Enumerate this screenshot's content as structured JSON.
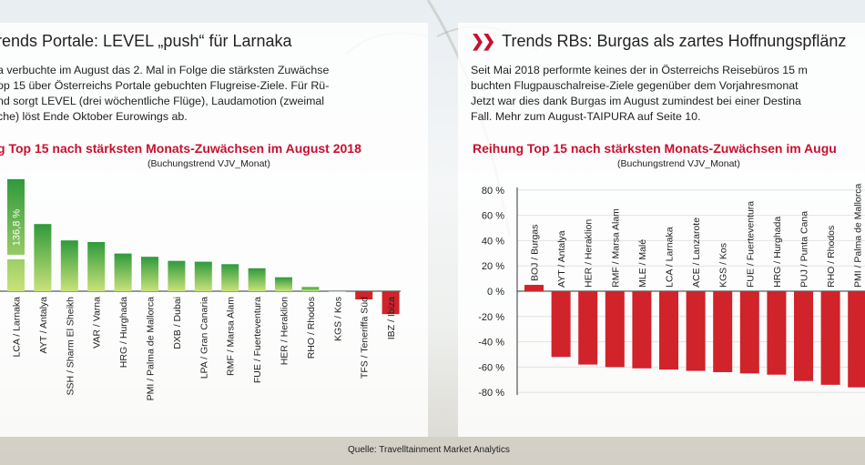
{
  "left_panel": {
    "title": "rends Portale: LEVEL „push“ für Larnaka",
    "body": [
      "a verbuchte im August das 2. Mal in Folge die stärksten Zuwächse",
      "op 15 über Österreichs Portale gebuchten Flugreise-Ziele. Für Rü-",
      "nd sorgt LEVEL (drei wöchentliche Flüge), Laudamotion (zweimal",
      "che) löst Ende Oktober Eurowings ab."
    ]
  },
  "right_panel": {
    "title": "Trends RBs: Burgas als zartes Hoffnungspflänz",
    "body": [
      "Seit Mai 2018 performte keines der in Österreichs Reisebüros 15 m",
      "buchten Flugpauschalreise-Ziele gegenüber dem Vorjahresmonat",
      "Jetzt war dies dank Burgas im August zumindest bei einer Destina",
      "Fall. Mehr zum August-TAIPURA auf Seite 10."
    ]
  },
  "source_note": "Quelle: Travelltainment Market Analytics",
  "chart_data": [
    {
      "type": "bar",
      "title": "g Top 15 nach stärksten Monats-Zuwächsen im August 2018",
      "subtitle": "(Buchungstrend VJV_Monat)",
      "categories": [
        "LCA / Larnaka",
        "AYT / Antalya",
        "SSH / Sharm El Sheikh",
        "VAR / Varna",
        "HRG / Hurghada",
        "PMI / Palma de Mallorca",
        "DXB / Dubai",
        "LPA / Gran Canaria",
        "RMF / Marsa Alam",
        "FUE / Fuerteventura",
        "HER / Heraklion",
        "RHO / Rhodos",
        "KGS / Kos",
        "TFS / Teneriffa Süd",
        "IBZ / Ibiza"
      ],
      "values": [
        136.8,
        82,
        62,
        60,
        46,
        42,
        37,
        36,
        33,
        28,
        17,
        5,
        0,
        -10,
        -28
      ],
      "data_labels": {
        "0": "136,8 %"
      },
      "colors": {
        "positive_top": "#2f9a3c",
        "positive_bottom": "#c9e27a",
        "negative": "#d1232a"
      }
    },
    {
      "type": "bar",
      "title": "Reihung Top 15 nach stärksten Monats-Zuwächsen im Augu",
      "subtitle": "(Buchungstrend VJV_Monat)",
      "categories": [
        "BOJ / Burgas",
        "AYT / Antalya",
        "HER / Heraklion",
        "RMF / Marsa Alam",
        "MLE / Malé",
        "LCA / Larnaka",
        "ACE / Lanzarote",
        "KGS / Kos",
        "FUE / Fuerteventura",
        "HRG / Hurghada",
        "PUJ / Punta Cana",
        "RHO / Rhodos",
        "PMI / Palma de Mallorca"
      ],
      "values": [
        5,
        -52,
        -58,
        -60,
        -61,
        -62,
        -63,
        -64,
        -65,
        -66,
        -71,
        -74,
        -76
      ],
      "ylim": [
        -80,
        80
      ],
      "yticks": [
        "80 %",
        "60 %",
        "40 %",
        "20 %",
        "0 %",
        "-20 %",
        "-40 %",
        "-60 %",
        "-80 %"
      ],
      "colors": {
        "positive": "#d1232a",
        "negative": "#d1232a"
      }
    }
  ]
}
